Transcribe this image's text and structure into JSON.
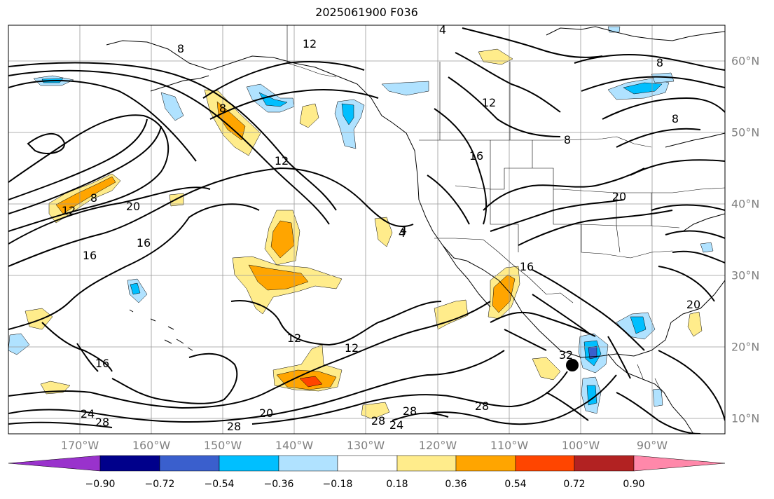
{
  "title": "2025061900 F036",
  "map": {
    "longitude_labels": [
      "170°W",
      "160°W",
      "150°W",
      "140°W",
      "130°W",
      "120°W",
      "110°W",
      "100°W",
      "90°W"
    ],
    "latitude_labels": [
      "60°N",
      "50°N",
      "40°N",
      "30°N",
      "20°N",
      "10°N"
    ],
    "contour_labels": [
      "4",
      "8",
      "12",
      "8",
      "12",
      "20",
      "16",
      "16",
      "4",
      "12",
      "12",
      "16",
      "20",
      "28",
      "28",
      "28",
      "24",
      "24",
      "28",
      "28",
      "32",
      "8",
      "8",
      "8",
      "12",
      "20",
      "16",
      "4",
      "20",
      "12",
      "16",
      "8"
    ],
    "marker": "filled-circle"
  },
  "colorbar": {
    "labels": [
      "−0.90",
      "−0.72",
      "−0.54",
      "−0.36",
      "−0.18",
      "0.18",
      "0.36",
      "0.54",
      "0.72",
      "0.90"
    ],
    "colors": [
      "#9932cc",
      "#00008b",
      "#3a5fcd",
      "#00bfff",
      "#b0e2ff",
      "#ffffff",
      "#ffec8b",
      "#ffa500",
      "#ff4500",
      "#b22222",
      "#ff88aa"
    ]
  }
}
